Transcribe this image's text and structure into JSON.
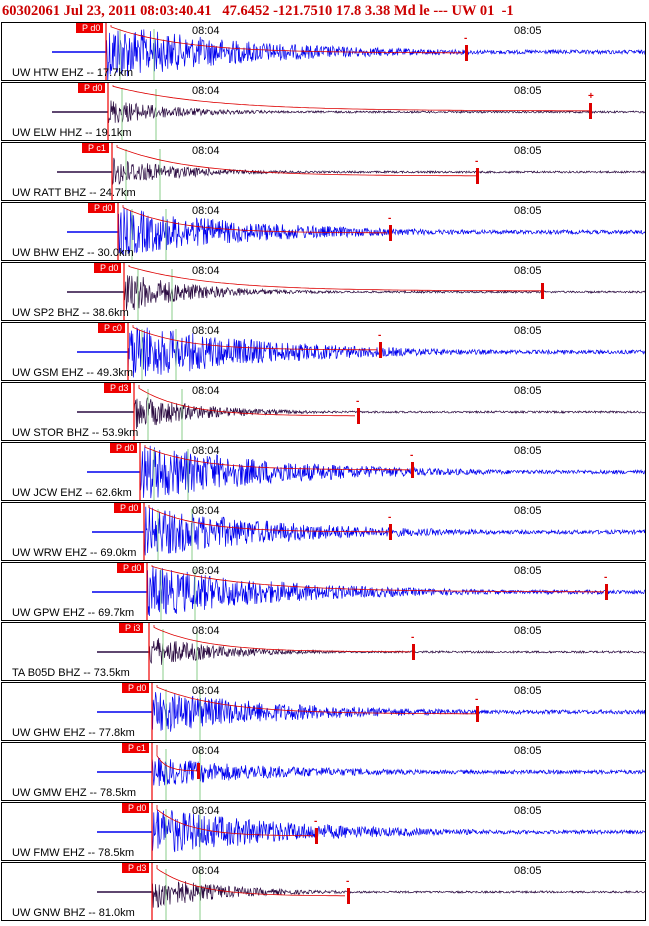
{
  "header": {
    "text": "60302061 Jul 23, 2011 08:03:40.41   47.6452 -121.7510 17.8 3.38 Md le --- UW 01  -1"
  },
  "time_ticks": [
    "08:04",
    "08:05"
  ],
  "colors": {
    "blue_trace": "#0000ee",
    "dark_trace": "#2a0a40",
    "pick_red": "#ee0000",
    "coda_red": "#dd0000",
    "green_mark": "#88cc88"
  },
  "traces": [
    {
      "label": "UW HTW EHZ -- 17.7km",
      "pick": "P d0",
      "style": "blue",
      "amplitude": 1.0,
      "coda_sign": "-"
    },
    {
      "label": "UW ELW HHZ -- 19.1km",
      "pick": "P d0",
      "style": "dark",
      "amplitude": 0.45,
      "coda_sign": "+"
    },
    {
      "label": "UW RATT BHZ -- 24.7km",
      "pick": "P c1",
      "style": "dark",
      "amplitude": 0.5,
      "coda_sign": "-"
    },
    {
      "label": "UW BHW EHZ -- 30.0km",
      "pick": "P d0",
      "style": "blue",
      "amplitude": 0.85,
      "coda_sign": "-"
    },
    {
      "label": "UW SP2 BHZ -- 38.6km",
      "pick": "P d0",
      "style": "dark",
      "amplitude": 0.7,
      "coda_sign": ""
    },
    {
      "label": "UW GSM EHZ -- 49.3km",
      "pick": "P c0",
      "style": "blue",
      "amplitude": 1.0,
      "coda_sign": "-"
    },
    {
      "label": "UW STOR BHZ -- 53.9km",
      "pick": "P d3",
      "style": "dark",
      "amplitude": 0.6,
      "coda_sign": "-"
    },
    {
      "label": "UW JCW EHZ -- 62.6km",
      "pick": "P d0",
      "style": "blue",
      "amplitude": 1.0,
      "coda_sign": "-"
    },
    {
      "label": "UW WRW EHZ -- 69.0km",
      "pick": "P d0",
      "style": "blue",
      "amplitude": 0.9,
      "coda_sign": "-"
    },
    {
      "label": "UW GPW EHZ -- 69.7km",
      "pick": "P d0",
      "style": "blue",
      "amplitude": 0.9,
      "coda_sign": "-"
    },
    {
      "label": "TA B05D BHZ -- 73.5km",
      "pick": "P i3",
      "style": "dark",
      "amplitude": 0.55,
      "coda_sign": "-"
    },
    {
      "label": "UW GHW EHZ -- 77.8km",
      "pick": "P d0",
      "style": "blue",
      "amplitude": 0.75,
      "coda_sign": "-"
    },
    {
      "label": "UW GMW EHZ -- 78.5km",
      "pick": "P c1",
      "style": "blue",
      "amplitude": 0.5,
      "coda_sign": ""
    },
    {
      "label": "UW FMW EHZ -- 78.5km",
      "pick": "P d0",
      "style": "blue",
      "amplitude": 0.85,
      "coda_sign": "-"
    },
    {
      "label": "UW GNW BHZ -- 81.0km",
      "pick": "P d3",
      "style": "dark",
      "amplitude": 0.6,
      "coda_sign": "-"
    }
  ]
}
